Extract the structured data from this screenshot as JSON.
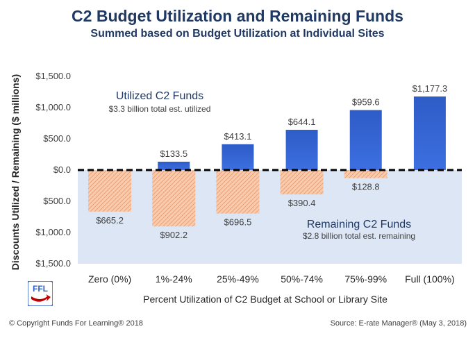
{
  "chart_data": {
    "type": "bar",
    "title": "C2 Budget Utilization and Remaining Funds",
    "subtitle": "Summed based on Budget Utilization at Individual Sites",
    "xlabel": "Percent Utilization of C2 Budget at School or Library Site",
    "ylabel": "Discounts Utilized / Remaining ($ millions)",
    "categories": [
      "Zero (0%)",
      "1%-24%",
      "25%-49%",
      "50%-74%",
      "75%-99%",
      "Full (100%)"
    ],
    "ylim": [
      -1500,
      1500
    ],
    "yticks": [
      1500,
      1000,
      500,
      0,
      -500,
      -1000,
      -1500
    ],
    "ytick_labels": [
      "$1,500.0",
      "$1,000.0",
      "$500.0",
      "$0.0",
      "$500.0",
      "$1,000.0",
      "$1,500.0"
    ],
    "series": [
      {
        "name": "Utilized C2 Funds",
        "values": [
          0,
          133.5,
          413.1,
          644.1,
          959.6,
          1177.3
        ],
        "labels": [
          "",
          "$133.5",
          "$413.1",
          "$644.1",
          "$959.6",
          "$1,177.3"
        ],
        "color": "#2f5fc4"
      },
      {
        "name": "Remaining C2 Funds",
        "values": [
          -665.2,
          -902.2,
          -696.5,
          -390.4,
          -128.8,
          0
        ],
        "labels": [
          "$665.2",
          "$902.2",
          "$696.5",
          "$390.4",
          "$128.8",
          ""
        ],
        "color": "#f4b183"
      }
    ],
    "annotations": {
      "utilized_title": "Utilized C2 Funds",
      "utilized_sub": "$3.3 billion total est. utilized",
      "remaining_title": "Remaining C2 Funds",
      "remaining_sub": "$2.8 billion total est. remaining"
    },
    "grid": false,
    "zero_line": "dashed"
  },
  "footer": {
    "copyright": "© Copyright Funds For Learning® 2018",
    "source": "Source: E-rate Manager® (May 3, 2018)"
  },
  "logo": {
    "text": "FFL",
    "colors": [
      "#2f5fc4",
      "#c00000"
    ]
  }
}
